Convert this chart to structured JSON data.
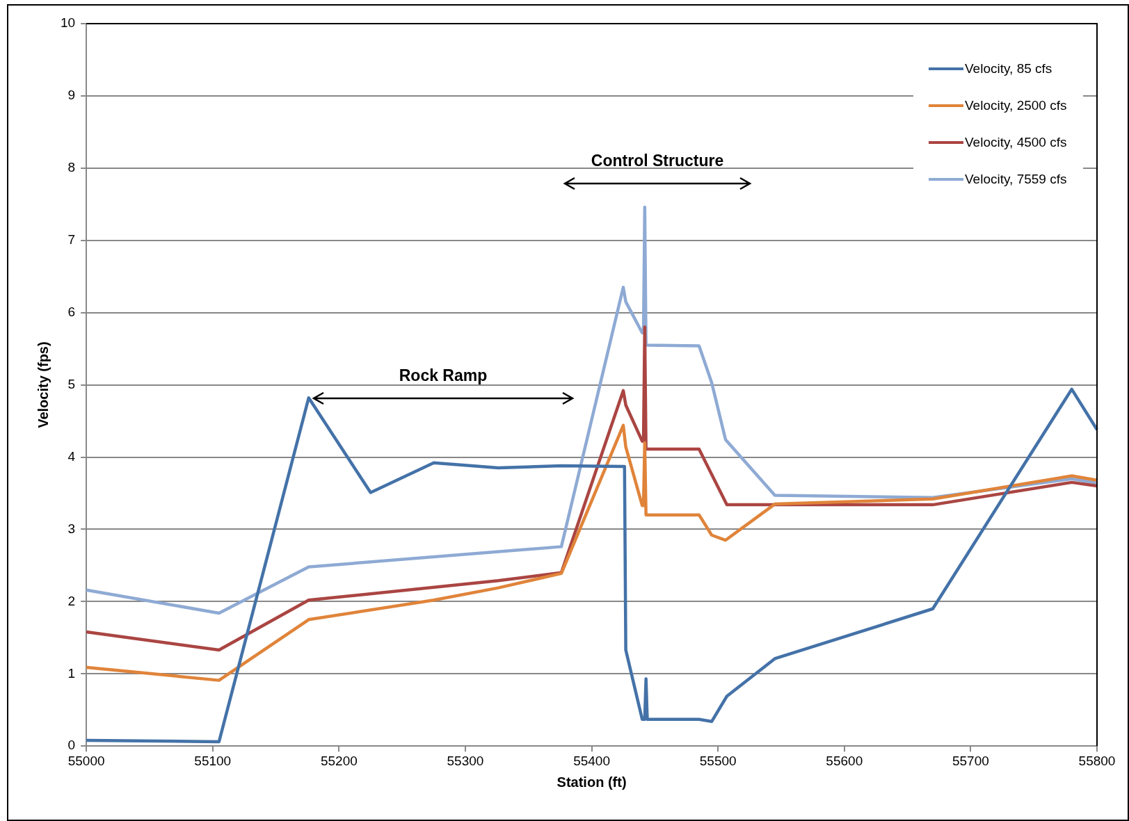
{
  "chart_data": {
    "type": "line",
    "xlabel": "Station (ft)",
    "ylabel": "Velocity (fps)",
    "xlim": [
      55000,
      55800
    ],
    "xticks": [
      55000,
      55100,
      55200,
      55300,
      55400,
      55500,
      55600,
      55700,
      55800
    ],
    "ylim": [
      0,
      10
    ],
    "yticks": [
      0,
      1,
      2,
      3,
      4,
      5,
      6,
      7,
      8,
      9,
      10
    ],
    "grid": "y",
    "legend": "top right",
    "marker": "none",
    "line_style": "solid",
    "annotations": [
      "Rock Ramp",
      "Control Structure"
    ],
    "series": [
      {
        "name": "Velocity, 85 cfs",
        "color": "#4472a8",
        "x": [
          55000,
          55105,
          55176,
          55225,
          55275,
          55326,
          55376,
          55425,
          55426,
          55427,
          55440,
          55442,
          55443,
          55444,
          55485,
          55495,
          55507,
          55545,
          55670,
          55780,
          55800
        ],
        "values": [
          0.08,
          0.06,
          4.82,
          3.51,
          3.92,
          3.85,
          3.88,
          3.87,
          3.87,
          1.33,
          0.37,
          0.37,
          0.93,
          0.37,
          0.37,
          0.34,
          0.69,
          1.21,
          1.9,
          4.94,
          4.38
        ]
      },
      {
        "name": "Velocity, 2500 cfs",
        "color": "#e0843a",
        "x": [
          55000,
          55105,
          55176,
          55275,
          55326,
          55376,
          55425,
          55427,
          55440,
          55441,
          55442,
          55443,
          55485,
          55495,
          55506,
          55545,
          55670,
          55780,
          55800
        ],
        "values": [
          1.09,
          0.91,
          1.75,
          2.02,
          2.19,
          2.39,
          4.44,
          4.14,
          3.33,
          3.33,
          4.2,
          3.2,
          3.2,
          2.92,
          2.85,
          3.35,
          3.42,
          3.74,
          3.68
        ]
      },
      {
        "name": "Velocity, 4500 cfs",
        "color": "#aa4542",
        "x": [
          55000,
          55105,
          55176,
          55326,
          55376,
          55425,
          55427,
          55440,
          55441,
          55442,
          55443,
          55485,
          55507,
          55670,
          55780,
          55800
        ],
        "values": [
          1.58,
          1.33,
          2.02,
          2.29,
          2.4,
          4.92,
          4.72,
          4.22,
          4.22,
          5.8,
          4.11,
          4.11,
          3.34,
          3.34,
          3.65,
          3.6
        ]
      },
      {
        "name": "Velocity, 7559 cfs",
        "color": "#8eaad4",
        "x": [
          55000,
          55105,
          55176,
          55376,
          55425,
          55427,
          55440,
          55441,
          55442,
          55443,
          55485,
          55495,
          55506,
          55545,
          55670,
          55780,
          55800
        ],
        "values": [
          2.16,
          1.84,
          2.48,
          2.76,
          6.35,
          6.15,
          5.72,
          5.72,
          7.46,
          5.55,
          5.54,
          5.03,
          4.24,
          3.47,
          3.44,
          3.7,
          3.64
        ]
      }
    ]
  }
}
